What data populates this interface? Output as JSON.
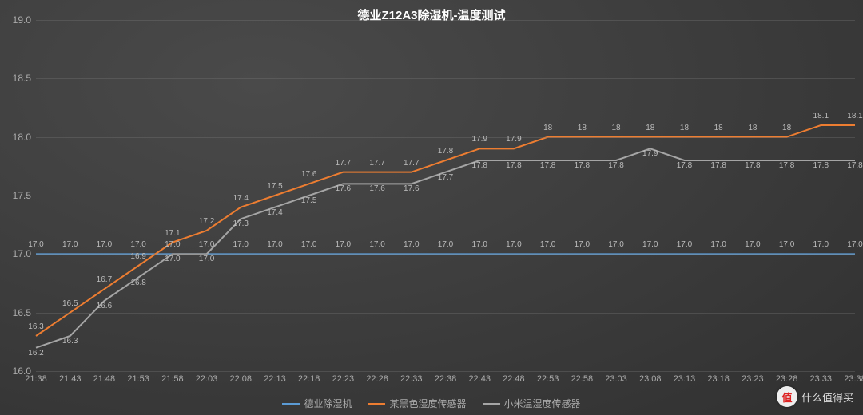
{
  "chart": {
    "type": "line",
    "title": "德业Z12A3除湿机-温度测试",
    "title_fontsize": 15,
    "title_color": "#ffffff",
    "background_gradient": [
      "#4a4a4a",
      "#303030"
    ],
    "grid_color": "rgba(120,120,120,0.35)",
    "axis_label_color": "#aaaaaa",
    "axis_fontsize": 12,
    "data_label_color": "#bbbbbb",
    "data_label_fontsize": 10,
    "ylim": [
      16.0,
      19.0
    ],
    "ytick_step": 0.5,
    "yticks": [
      "16.0",
      "16.5",
      "17.0",
      "17.5",
      "18.0",
      "18.5",
      "19.0"
    ],
    "categories": [
      "21:38",
      "21:43",
      "21:48",
      "21:53",
      "21:58",
      "22:03",
      "22:08",
      "22:13",
      "22:18",
      "22:23",
      "22:28",
      "22:33",
      "22:38",
      "22:43",
      "22:48",
      "22:53",
      "22:58",
      "23:03",
      "23:08",
      "23:13",
      "23:18",
      "23:23",
      "23:28",
      "23:33",
      "23:38"
    ],
    "series": [
      {
        "name": "德业除湿机",
        "color": "#5b9bd5",
        "line_width": 2,
        "data": [
          17.0,
          17.0,
          17.0,
          17.0,
          17.0,
          17.0,
          17.0,
          17.0,
          17.0,
          17.0,
          17.0,
          17.0,
          17.0,
          17.0,
          17.0,
          17.0,
          17.0,
          17.0,
          17.0,
          17.0,
          17.0,
          17.0,
          17.0,
          17.0,
          17.0
        ],
        "labels": [
          "17.0",
          "17.0",
          "17.0",
          "17.0",
          "17.0",
          "17.0",
          "17.0",
          "17.0",
          "17.0",
          "17.0",
          "17.0",
          "17.0",
          "17.0",
          "17.0",
          "17.0",
          "17.0",
          "17.0",
          "17.0",
          "17.0",
          "17.0",
          "17.0",
          "17.0",
          "17.0",
          "17.0",
          "17.0"
        ],
        "label_offset_y": -6
      },
      {
        "name": "某黑色湿度传感器",
        "color": "#ed7d31",
        "line_width": 2,
        "data": [
          16.3,
          16.5,
          16.7,
          16.9,
          17.1,
          17.2,
          17.4,
          17.5,
          17.6,
          17.7,
          17.7,
          17.7,
          17.8,
          17.9,
          17.9,
          18.0,
          18.0,
          18.0,
          18.0,
          18.0,
          18.0,
          18.0,
          18.0,
          18.1,
          18.1
        ],
        "labels": [
          "16.3",
          "16.5",
          "16.7",
          "16.9",
          "17.1",
          "17.2",
          "17.4",
          "17.5",
          "17.6",
          "17.7",
          "17.7",
          "17.7",
          "17.8",
          "17.9",
          "17.9",
          "18",
          "18",
          "18",
          "18",
          "18",
          "18",
          "18",
          "18",
          "18.1",
          "18.1"
        ],
        "label_offset_y": -6
      },
      {
        "name": "小米温湿度传感器",
        "color": "#a5a5a5",
        "line_width": 2,
        "data": [
          16.2,
          16.3,
          16.6,
          16.8,
          17.0,
          17.0,
          17.3,
          17.4,
          17.5,
          17.6,
          17.6,
          17.6,
          17.7,
          17.8,
          17.8,
          17.8,
          17.8,
          17.8,
          17.9,
          17.8,
          17.8,
          17.8,
          17.8,
          17.8,
          17.8
        ],
        "labels": [
          "16.2",
          "16.3",
          "16.6",
          "16.8",
          "17.0",
          "17.0",
          "17.3",
          "17.4",
          "17.5",
          "17.6",
          "17.6",
          "17.6",
          "17.7",
          "17.8",
          "17.8",
          "17.8",
          "17.8",
          "17.8",
          "17.9",
          "17.8",
          "17.8",
          "17.8",
          "17.8",
          "17.8",
          "17.8"
        ],
        "label_offset_y": 12
      }
    ],
    "legend_position": "bottom-center"
  },
  "watermark": {
    "badge_text": "值",
    "text": "什么值得买",
    "badge_bg": "#eeeeee",
    "badge_fg": "#d22222",
    "text_color": "#dddddd"
  }
}
